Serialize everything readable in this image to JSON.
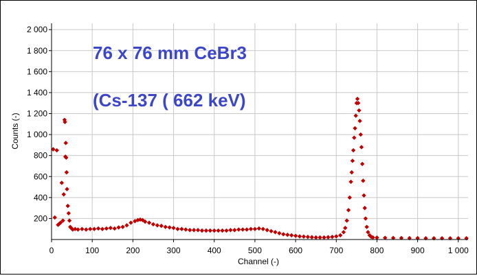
{
  "chart_data": {
    "type": "scatter",
    "xlabel": "Channel (-)",
    "ylabel": "Counts (-)",
    "xlim": [
      0,
      1024
    ],
    "ylim": [
      0,
      2060
    ],
    "xticks": [
      {
        "v": 0,
        "label": "0"
      },
      {
        "v": 100,
        "label": "100"
      },
      {
        "v": 200,
        "label": "200"
      },
      {
        "v": 300,
        "label": "300"
      },
      {
        "v": 400,
        "label": "400"
      },
      {
        "v": 500,
        "label": "500"
      },
      {
        "v": 600,
        "label": "600"
      },
      {
        "v": 700,
        "label": "700"
      },
      {
        "v": 800,
        "label": "800"
      },
      {
        "v": 900,
        "label": "900"
      },
      {
        "v": 1000,
        "label": "1 000"
      }
    ],
    "yticks": [
      {
        "v": 200,
        "label": "200"
      },
      {
        "v": 400,
        "label": "400"
      },
      {
        "v": 600,
        "label": "600"
      },
      {
        "v": 800,
        "label": "800"
      },
      {
        "v": 1000,
        "label": "1 000"
      },
      {
        "v": 1200,
        "label": "1 200"
      },
      {
        "v": 1400,
        "label": "1 400"
      },
      {
        "v": 1600,
        "label": "1 600"
      },
      {
        "v": 1800,
        "label": "1 800"
      },
      {
        "v": 2000,
        "label": "2 000"
      }
    ],
    "grid": true,
    "marker_color": "#c00000",
    "annotation_color": "#3c46c8",
    "annotations": [
      "76 x 76 mm CeBr3",
      "(Cs-137 ( 662 keV)"
    ],
    "series": [
      {
        "points": [
          [
            4,
            860
          ],
          [
            8,
            210
          ],
          [
            13,
            850
          ],
          [
            16,
            140
          ],
          [
            19,
            150
          ],
          [
            22,
            160
          ],
          [
            25,
            540
          ],
          [
            28,
            180
          ],
          [
            30,
            430
          ],
          [
            32,
            1140
          ],
          [
            33,
            1120
          ],
          [
            34,
            790
          ],
          [
            35,
            920
          ],
          [
            36,
            780
          ],
          [
            37,
            640
          ],
          [
            38,
            480
          ],
          [
            40,
            320
          ],
          [
            42,
            250
          ],
          [
            44,
            180
          ],
          [
            46,
            120
          ],
          [
            48,
            110
          ],
          [
            52,
            95
          ],
          [
            58,
            100
          ],
          [
            65,
            95
          ],
          [
            75,
            100
          ],
          [
            85,
            95
          ],
          [
            95,
            100
          ],
          [
            105,
            100
          ],
          [
            115,
            105
          ],
          [
            125,
            100
          ],
          [
            135,
            105
          ],
          [
            145,
            110
          ],
          [
            155,
            105
          ],
          [
            165,
            115
          ],
          [
            175,
            120
          ],
          [
            185,
            135
          ],
          [
            195,
            160
          ],
          [
            205,
            175
          ],
          [
            212,
            185
          ],
          [
            218,
            190
          ],
          [
            224,
            185
          ],
          [
            230,
            170
          ],
          [
            240,
            160
          ],
          [
            250,
            145
          ],
          [
            260,
            135
          ],
          [
            270,
            130
          ],
          [
            280,
            120
          ],
          [
            290,
            115
          ],
          [
            300,
            110
          ],
          [
            310,
            100
          ],
          [
            320,
            100
          ],
          [
            330,
            95
          ],
          [
            340,
            90
          ],
          [
            350,
            90
          ],
          [
            360,
            90
          ],
          [
            370,
            85
          ],
          [
            380,
            85
          ],
          [
            390,
            85
          ],
          [
            400,
            85
          ],
          [
            410,
            85
          ],
          [
            420,
            85
          ],
          [
            430,
            85
          ],
          [
            440,
            90
          ],
          [
            450,
            90
          ],
          [
            460,
            95
          ],
          [
            470,
            95
          ],
          [
            480,
            95
          ],
          [
            490,
            100
          ],
          [
            500,
            100
          ],
          [
            510,
            105
          ],
          [
            520,
            100
          ],
          [
            530,
            90
          ],
          [
            540,
            80
          ],
          [
            550,
            70
          ],
          [
            560,
            60
          ],
          [
            570,
            50
          ],
          [
            580,
            45
          ],
          [
            590,
            40
          ],
          [
            600,
            35
          ],
          [
            610,
            30
          ],
          [
            620,
            28
          ],
          [
            630,
            25
          ],
          [
            640,
            22
          ],
          [
            650,
            20
          ],
          [
            660,
            20
          ],
          [
            670,
            20
          ],
          [
            680,
            22
          ],
          [
            690,
            25
          ],
          [
            700,
            30
          ],
          [
            710,
            40
          ],
          [
            718,
            70
          ],
          [
            722,
            110
          ],
          [
            726,
            180
          ],
          [
            730,
            280
          ],
          [
            733,
            400
          ],
          [
            736,
            550
          ],
          [
            738,
            640
          ],
          [
            740,
            750
          ],
          [
            742,
            850
          ],
          [
            744,
            970
          ],
          [
            746,
            1060
          ],
          [
            748,
            1180
          ],
          [
            750,
            1300
          ],
          [
            752,
            1340
          ],
          [
            754,
            1300
          ],
          [
            756,
            1230
          ],
          [
            758,
            1130
          ],
          [
            760,
            1000
          ],
          [
            762,
            880
          ],
          [
            764,
            720
          ],
          [
            766,
            560
          ],
          [
            768,
            420
          ],
          [
            770,
            300
          ],
          [
            772,
            200
          ],
          [
            775,
            120
          ],
          [
            778,
            70
          ],
          [
            782,
            40
          ],
          [
            786,
            25
          ],
          [
            790,
            20
          ],
          [
            800,
            18
          ],
          [
            820,
            16
          ],
          [
            840,
            15
          ],
          [
            860,
            14
          ],
          [
            880,
            13
          ],
          [
            900,
            13
          ],
          [
            920,
            12
          ],
          [
            940,
            12
          ],
          [
            960,
            12
          ],
          [
            980,
            12
          ],
          [
            1000,
            12
          ],
          [
            1020,
            12
          ]
        ]
      }
    ]
  }
}
